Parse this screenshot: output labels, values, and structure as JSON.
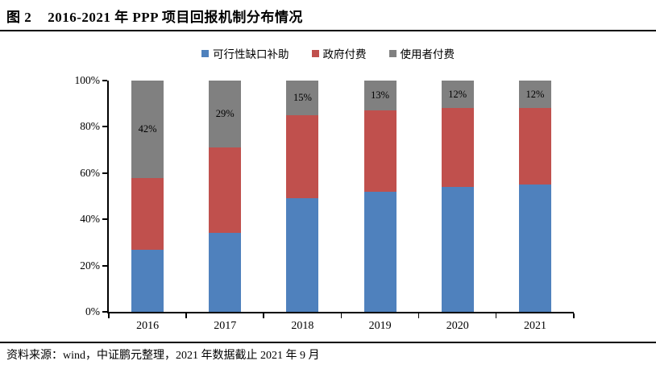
{
  "header": {
    "figure_label": "图 2",
    "title": "2016-2021 年 PPP 项目回报机制分布情况"
  },
  "footer": {
    "source": "资料来源：wind，中证鹏元整理，2021 年数据截止 2021 年 9 月"
  },
  "colors": {
    "feasibility_gap_blue": "#4F81BD",
    "government_pay_red": "#C0504D",
    "user_pay_gray": "#808080",
    "axis": "#000000"
  },
  "chart_data": {
    "type": "bar",
    "stacked": true,
    "percent_stacked": true,
    "title": "",
    "xlabel": "",
    "ylabel": "",
    "categories": [
      "2016",
      "2017",
      "2018",
      "2019",
      "2020",
      "2021"
    ],
    "series": [
      {
        "name": "可行性缺口补助",
        "color": "#4F81BD",
        "values": [
          27,
          34,
          49,
          52,
          54,
          55
        ]
      },
      {
        "name": "政府付费",
        "color": "#C0504D",
        "values": [
          31,
          37,
          36,
          35,
          34,
          33
        ]
      },
      {
        "name": "使用者付费",
        "color": "#808080",
        "values": [
          42,
          29,
          15,
          13,
          12,
          12
        ],
        "data_labels": [
          "42%",
          "29%",
          "15%",
          "13%",
          "12%",
          "12%"
        ]
      }
    ],
    "ylim": [
      0,
      100
    ],
    "y_ticks": [
      "0%",
      "20%",
      "40%",
      "60%",
      "80%",
      "100%"
    ],
    "legend_position": "top",
    "grid": false
  }
}
